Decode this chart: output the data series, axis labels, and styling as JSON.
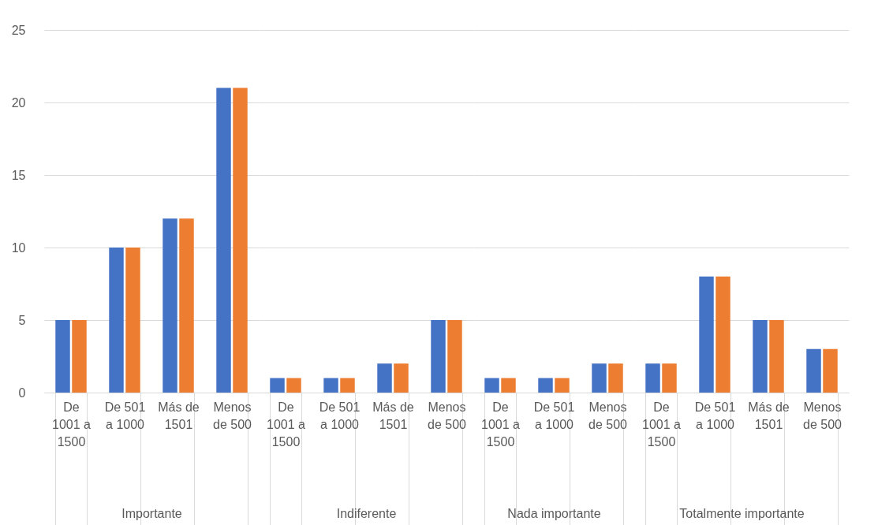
{
  "chart_data": [
    {
      "type": "bar",
      "xlabel": "Importante",
      "categories": [
        "De 1001 a 1500",
        "De 501 a 1000",
        "Más de 1501",
        "Menos de 500"
      ],
      "series": [
        {
          "color": "#4472c4",
          "values": [
            5,
            10,
            12,
            21
          ]
        },
        {
          "color": "#ed7d31",
          "values": [
            5,
            10,
            12,
            21
          ]
        }
      ],
      "ylim": [
        0,
        25
      ],
      "yticks": [
        0,
        5,
        10,
        15,
        20,
        25
      ],
      "grid": "y"
    },
    {
      "type": "bar",
      "xlabel": "Indiferente",
      "categories": [
        "De 1001 a 1500",
        "De 501 a 1000",
        "Más de 1501",
        "Menos de 500"
      ],
      "series": [
        {
          "color": "#4472c4",
          "values": [
            1,
            1,
            2,
            5
          ]
        },
        {
          "color": "#ed7d31",
          "values": [
            1,
            1,
            2,
            5
          ]
        }
      ],
      "ylim": [
        0,
        25
      ],
      "yticks": [
        0,
        5,
        10,
        15,
        20,
        25
      ],
      "grid": "y",
      "tick_labels": "x"
    },
    {
      "type": "bar",
      "xlabel": "Nada importante",
      "categories": [
        "De 1001 a 1500",
        "De 501 a 1000",
        "Menos de 500"
      ],
      "series": [
        {
          "color": "#4472c4",
          "values": [
            1,
            1,
            2
          ]
        },
        {
          "color": "#ed7d31",
          "values": [
            1,
            1,
            2
          ]
        }
      ],
      "ylim": [
        0,
        25
      ],
      "yticks": [
        0,
        5,
        10,
        15,
        20,
        25
      ],
      "grid": "y",
      "tick_labels": "x"
    },
    {
      "type": "bar",
      "xlabel": "Totalmente importante",
      "categories": [
        "De 1001 a 1500",
        "De 501 a 1000",
        "Más de 1501",
        "Menos de 500"
      ],
      "series": [
        {
          "color": "#4472c4",
          "values": [
            2,
            8,
            5,
            3
          ]
        },
        {
          "color": "#ed7d31",
          "values": [
            2,
            8,
            5,
            3
          ]
        }
      ],
      "ylim": [
        0,
        25
      ],
      "yticks": [
        0,
        5,
        10,
        15,
        20,
        25
      ],
      "grid": "y",
      "tick_labels": "x"
    }
  ]
}
